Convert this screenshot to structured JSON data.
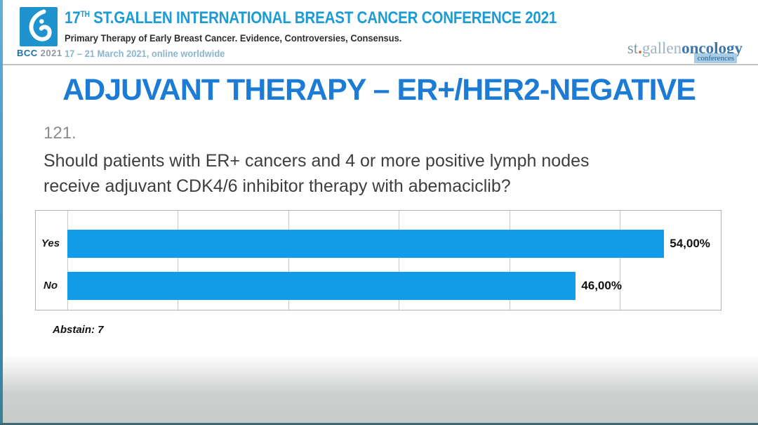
{
  "header": {
    "logo_bcc": "BCC",
    "logo_year": "2021",
    "title_num": "17",
    "title_sup": "TH",
    "title_rest": " ST.GALLEN INTERNATIONAL BREAST CANCER CONFERENCE 2021",
    "subtitle": "Primary Therapy of Early Breast Cancer. Evidence, Controversies, Consensus.",
    "dates": "17 – 21 March 2021, online worldwide",
    "brand": {
      "st": "st",
      "dot": ".",
      "gallen": "gallen",
      "oncology": "oncology",
      "conferences": "conferences"
    }
  },
  "slide": {
    "title": "ADJUVANT THERAPY – ER+/HER2-NEGATIVE",
    "question_number": "121.",
    "question_line1": "Should patients with ER+ cancers and 4 or more positive lymph nodes",
    "question_line2": "receive adjuvant CDK4/6 inhibitor therapy with abemaciclib?",
    "abstain_label": "Abstain: 7"
  },
  "chart_data": {
    "type": "bar",
    "orientation": "horizontal",
    "title": "",
    "categories": [
      "Yes",
      "No"
    ],
    "values": [
      54,
      46
    ],
    "value_labels": [
      "54,00%",
      "46,00%"
    ],
    "abstain_count": 7,
    "xlim": [
      0,
      59
    ],
    "gridline_interval": 10,
    "grid": true,
    "legend": false,
    "bar_color": "#119be8"
  },
  "colors": {
    "conference_title_blue": "#1d9bd4",
    "slide_title_blue": "#1c7cd5",
    "bar_blue": "#119be8",
    "brand_orange": "#e05a1e",
    "footer_gray": "#c7cac8"
  }
}
